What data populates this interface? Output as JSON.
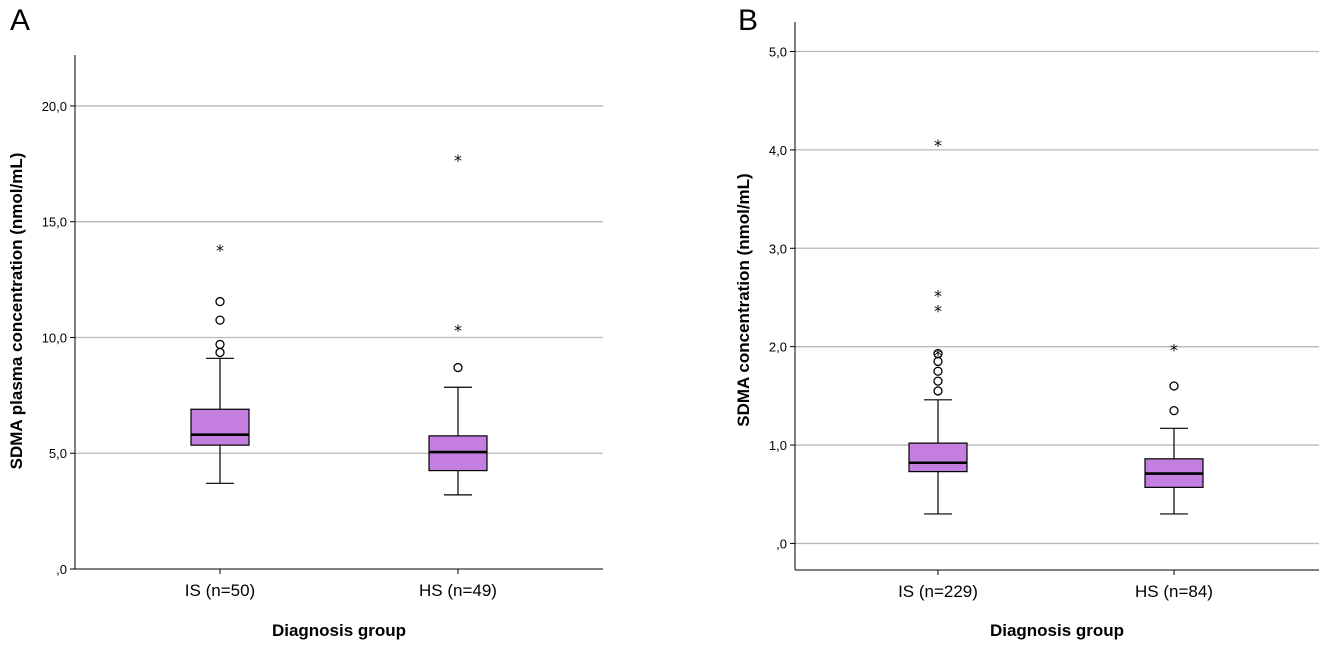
{
  "chart_data": [
    {
      "type": "boxplot",
      "panel_label": "A",
      "xlabel": "Diagnosis group",
      "ylabel": "SDMA plasma concentration (nmol/mL)",
      "ylim": [
        0,
        22.2
      ],
      "yticks": [
        0,
        5,
        10,
        15,
        20
      ],
      "ytick_labels": [
        ",0",
        "5,0",
        "10,0",
        "15,0",
        "20,0"
      ],
      "gridlines": true,
      "box_color": "#c47ee0",
      "groups": [
        {
          "label": "IS (n=50)",
          "whisker_low": 3.7,
          "q1": 5.35,
          "median": 5.8,
          "q3": 6.9,
          "whisker_high": 9.1,
          "outliers": [
            9.35,
            9.7,
            10.75,
            11.55
          ],
          "extremes": [
            13.9
          ]
        },
        {
          "label": "HS (n=49)",
          "whisker_low": 3.2,
          "q1": 4.25,
          "median": 5.05,
          "q3": 5.75,
          "whisker_high": 7.85,
          "outliers": [
            8.7
          ],
          "extremes": [
            10.45,
            17.8
          ]
        }
      ]
    },
    {
      "type": "boxplot",
      "panel_label": "B",
      "xlabel": "Diagnosis group",
      "ylabel": "SDMA concentration (nmol/mL)",
      "ylim": [
        -0.27,
        5.3
      ],
      "yticks": [
        0,
        1,
        2,
        3,
        4,
        5
      ],
      "ytick_labels": [
        ",0",
        "1,0",
        "2,0",
        "3,0",
        "4,0",
        "5,0"
      ],
      "gridlines": true,
      "box_color": "#c47ee0",
      "groups": [
        {
          "label": "IS (n=229)",
          "whisker_low": 0.3,
          "q1": 0.73,
          "median": 0.82,
          "q3": 1.02,
          "whisker_high": 1.46,
          "outliers": [
            1.55,
            1.65,
            1.75,
            1.85,
            1.93
          ],
          "extremes": [
            1.95,
            2.4,
            2.55,
            4.08
          ]
        },
        {
          "label": "HS (n=84)",
          "whisker_low": 0.3,
          "q1": 0.57,
          "median": 0.71,
          "q3": 0.86,
          "whisker_high": 1.17,
          "outliers": [
            1.35,
            1.6
          ],
          "extremes": [
            2.0
          ]
        }
      ]
    }
  ]
}
